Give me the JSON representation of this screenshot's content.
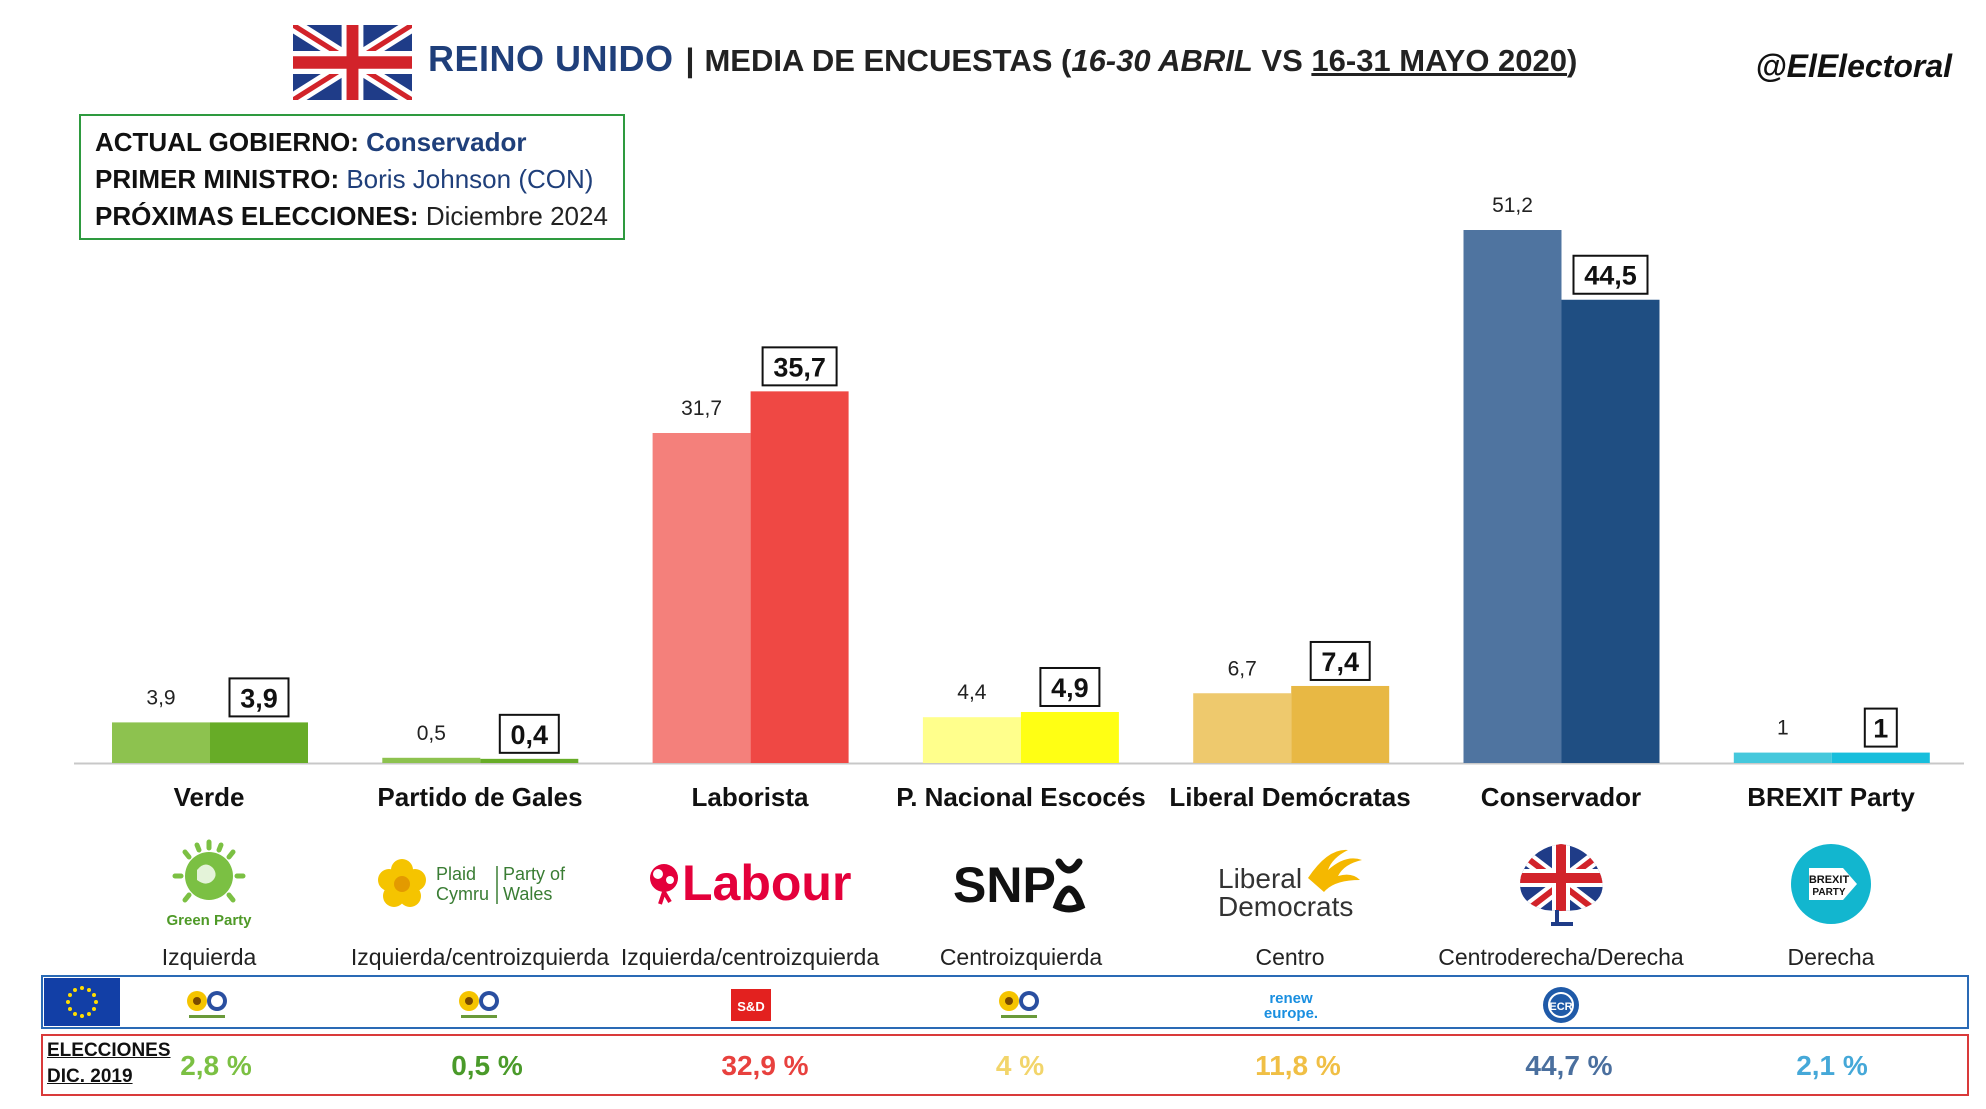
{
  "header": {
    "country": "REINO UNIDO",
    "separator": "|",
    "subtitle_lead": "MEDIA DE ENCUESTAS (",
    "subtitle_period1": "16-30 ABRIL",
    "subtitle_vs": " VS ",
    "subtitle_period2": "16-31 MAYO 2020",
    "subtitle_close": ")",
    "handle": "@ElElectoral"
  },
  "info": {
    "gov_label": "ACTUAL GOBIERNO:",
    "gov_value": "Conservador",
    "pm_label": "PRIMER MINISTRO:",
    "pm_value": "Boris Johnson  (CON)",
    "next_label": "PRÓXIMAS ELECCIONES:",
    "next_value": "Diciembre 2024"
  },
  "chart_data": {
    "type": "bar",
    "categories": [
      "Verde",
      "Partido de Gales",
      "Laborista",
      "P. Nacional Escocés",
      "Liberal Demócratas",
      "Conservador",
      "BREXIT Party"
    ],
    "series": [
      {
        "name": "16-30 ABRIL",
        "values": [
          3.9,
          0.5,
          31.7,
          4.4,
          6.7,
          51.2,
          1
        ],
        "labels": [
          "3,9",
          "0,5",
          "31,7",
          "4,4",
          "6,7",
          "51,2",
          "1"
        ],
        "colors": [
          "#8dc24f",
          "#8dc24f",
          "#f4807b",
          "#ffff8c",
          "#eec96d",
          "#4f74a0",
          "#45c8dc"
        ]
      },
      {
        "name": "16-31 MAYO 2020",
        "values": [
          3.9,
          0.4,
          35.7,
          4.9,
          7.4,
          44.5,
          1
        ],
        "labels": [
          "3,9",
          "0,4",
          "35,7",
          "4,9",
          "7,4",
          "44,5",
          "1"
        ],
        "colors": [
          "#67ac27",
          "#67ac27",
          "#ef4844",
          "#ffff14",
          "#e8b844",
          "#1f4e82",
          "#18bedc"
        ]
      }
    ],
    "ylim": [
      0,
      51.2
    ],
    "grid": false,
    "legend": "none"
  },
  "parties": [
    {
      "name": "Verde",
      "ideology": "Izquierda",
      "logo_text": "Green Party"
    },
    {
      "name": "Partido de Gales",
      "ideology": "Izquierda/centroizquierda",
      "logo_text_1": "Plaid",
      "logo_text_2": "Cymru",
      "logo_text_3": "Party of",
      "logo_text_4": "Wales"
    },
    {
      "name": "Laborista",
      "ideology": "Izquierda/centroizquierda",
      "logo_text": "Labour"
    },
    {
      "name": "P. Nacional Escocés",
      "ideology": "Centroizquierda",
      "logo_text": "SNP"
    },
    {
      "name": "Liberal Demócratas",
      "ideology": "Centro",
      "logo_text_1": "Liberal",
      "logo_text_2": "Democrats"
    },
    {
      "name": "Conservador",
      "ideology": "Centroderecha/Derecha"
    },
    {
      "name": "BREXIT Party",
      "ideology": "Derecha",
      "logo_text_1": "BREXIT",
      "logo_text_2": "PARTY"
    }
  ],
  "eu_groups": {
    "sd": "S&D",
    "renew_1": "renew",
    "renew_2": "europe.",
    "ecr": "ECR"
  },
  "elections_2019": {
    "label_line1": "ELECCIONES",
    "label_line2": "DIC. 2019",
    "values": [
      "2,8 %",
      "0,5 %",
      "32,9 %",
      "4 %",
      "11,8 %",
      "44,7 %",
      "2,1 %"
    ],
    "colors": [
      "#7bc043",
      "#4a9a2a",
      "#e8413e",
      "#f2d56b",
      "#f0bf45",
      "#4a6f9e",
      "#45a8d8"
    ]
  },
  "colors": {
    "title_blue": "#1f3f7a",
    "infobox_border": "#2e9a3f",
    "eu_border": "#2a6ab5",
    "e19_border": "#d93a3a"
  }
}
